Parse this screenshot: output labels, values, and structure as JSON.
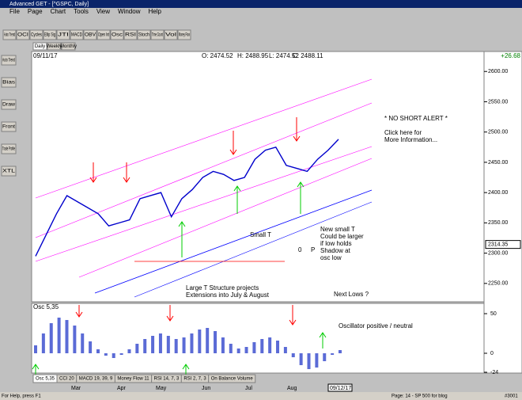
{
  "window": {
    "title": "Advanced GET - [^GSPC, Daily]"
  },
  "menu": [
    "File",
    "Page",
    "Chart",
    "Tools",
    "View",
    "Window",
    "Help"
  ],
  "toolbar": [
    "Auto Trend",
    "OCI",
    "Cycles",
    "Ellip Sig",
    "JTI",
    "MACD",
    "OBV",
    "Open Int",
    "Osc",
    "RSI",
    "Stoch",
    "Time Count",
    "Vol",
    "Money Flow"
  ],
  "side_toolbar": [
    "Auto Trend",
    "Bias",
    "Draw",
    "Front",
    "Trade Profile",
    "XTL"
  ],
  "period_tabs": [
    "Daily",
    "Weekly",
    "Monthly"
  ],
  "header": {
    "date": "09/11/17",
    "open": "O: 2474.52",
    "high": "H: 2488.95",
    "low": "L: 2474.52",
    "close": "C: 2488.11",
    "change": "+26.68"
  },
  "price_chart": {
    "ylim": [
      2221,
      2633
    ],
    "yticks": [
      {
        "value": 2250,
        "label": "2250.00"
      },
      {
        "value": 2300,
        "label": "2300.00"
      },
      {
        "value": 2350,
        "label": "2350.00"
      },
      {
        "value": 2400,
        "label": "2400.00"
      },
      {
        "value": 2450,
        "label": "2450.00"
      },
      {
        "value": 2500,
        "label": "2500.00"
      },
      {
        "value": 2550,
        "label": "2550.00"
      },
      {
        "value": 2600,
        "label": "2600.00"
      }
    ],
    "marker": {
      "value": 2314.35,
      "label": "2314.35"
    },
    "close": [
      2295,
      2330,
      2365,
      2395,
      2385,
      2375,
      2365,
      2345,
      2350,
      2355,
      2390,
      2395,
      2400,
      2360,
      2390,
      2405,
      2425,
      2435,
      2430,
      2420,
      2425,
      2455,
      2470,
      2475,
      2445,
      2440,
      2435,
      2455,
      2470,
      2488
    ]
  },
  "annotations": [
    "* NO SHORT ALERT *",
    "Click here for",
    "More Information...",
    "Small T",
    "New small T",
    "Could be larger",
    "if low holds",
    "Shadow at",
    "osc low",
    "0",
    "P",
    "Large T Structure projects",
    "Extensions into July & August",
    "Next Lows ?"
  ],
  "oscillator": {
    "title": "Osc 5,35",
    "note": "Oscillator positive / neutral",
    "ylim": [
      -26,
      56
    ],
    "yticks": [
      50,
      0,
      -24
    ],
    "values": [
      10,
      25,
      38,
      45,
      42,
      35,
      25,
      15,
      5,
      -3,
      -6,
      -2,
      5,
      12,
      18,
      22,
      25,
      22,
      18,
      20,
      25,
      30,
      32,
      28,
      20,
      12,
      6,
      8,
      14,
      18,
      20,
      16,
      8,
      -5,
      -15,
      -20,
      -18,
      -10,
      -2,
      4
    ]
  },
  "indicator_tabs": [
    "Osc 5,35",
    "CCI 20",
    "MACD 19, 39, 9",
    "Money Flow 11",
    "RSI 14, 7, 3",
    "RSI 2, 7, 3",
    "On Balance Volume"
  ],
  "months": [
    "Mar",
    "Apr",
    "May",
    "Jun",
    "Jul",
    "Aug"
  ],
  "cursor_date": "09/12/17",
  "status": {
    "help": "For Help, press F1",
    "page": "Page: 14 - SP 500 for blog",
    "id": "#3001"
  }
}
